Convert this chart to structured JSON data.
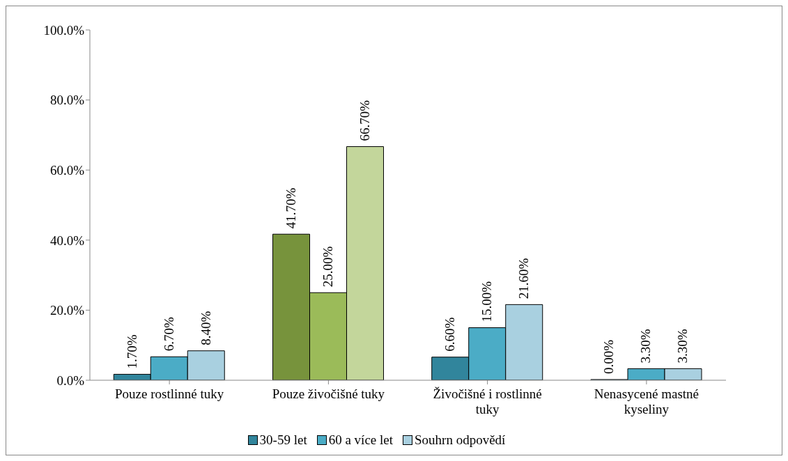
{
  "chart_data": {
    "type": "bar",
    "categories": [
      "Pouze rostlinné tuky",
      "Pouze živočišné tuky",
      "Živočišné i rostlinné tuky",
      "Nenasycené mastné kyseliny"
    ],
    "series": [
      {
        "name": "30-59 let",
        "color": "#31859c",
        "colors": [
          "#31859c",
          "#77933c",
          "#31859c",
          "#31859c"
        ],
        "values": [
          1.7,
          41.7,
          6.6,
          0
        ],
        "value_labels": [
          "1.70%",
          "41.70%",
          "6.60%",
          "0.00%"
        ]
      },
      {
        "name": "60 a více let",
        "color": "#4bacc6",
        "colors": [
          "#4bacc6",
          "#9bbb59",
          "#4bacc6",
          "#4bacc6"
        ],
        "values": [
          6.7,
          25,
          15,
          3.3
        ],
        "value_labels": [
          "6.70%",
          "25.00%",
          "15.00%",
          "3.30%"
        ]
      },
      {
        "name": "Souhrn odpovědí",
        "color": "#a9d0e0",
        "colors": [
          "#a9d0e0",
          "#c3d69b",
          "#a9d0e0",
          "#a9d0e0"
        ],
        "values": [
          8.4,
          66.7,
          21.6,
          3.3
        ],
        "value_labels": [
          "8.40%",
          "66.70%",
          "21.60%",
          "3.30%"
        ]
      }
    ],
    "ylim": [
      0,
      100
    ],
    "yticks": [
      {
        "value": 0,
        "label": "0.0%"
      },
      {
        "value": 20,
        "label": "20.0%"
      },
      {
        "value": 40,
        "label": "40.0%"
      },
      {
        "value": 60,
        "label": "60.0%"
      },
      {
        "value": 80,
        "label": "80.0%"
      },
      {
        "value": 100,
        "label": "100.0%"
      }
    ],
    "grid": false,
    "legend": "bottom"
  }
}
